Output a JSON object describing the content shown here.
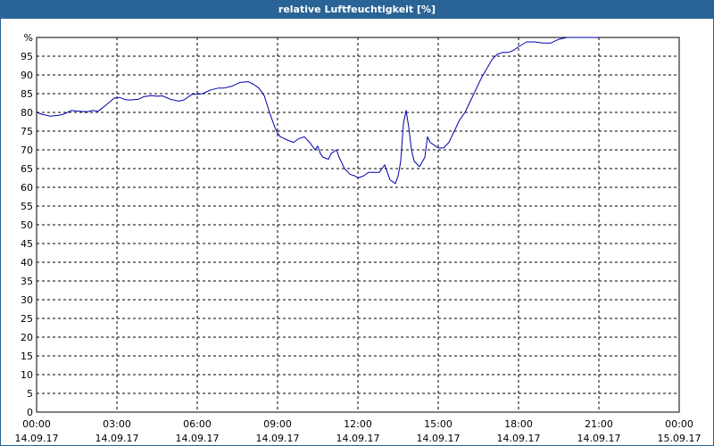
{
  "window": {
    "title": "relative Luftfeuchtigkeit [%]"
  },
  "chart_data": {
    "type": "line",
    "title": "relative Luftfeuchtigkeit [%]",
    "ylabel": "%",
    "xlabel": "",
    "ylim": [
      0,
      100
    ],
    "y_ticks": [
      0,
      5,
      10,
      15,
      20,
      25,
      30,
      35,
      40,
      45,
      50,
      55,
      60,
      65,
      70,
      75,
      80,
      85,
      90,
      95
    ],
    "x_range_hours": [
      0,
      24
    ],
    "x_ticks": [
      {
        "hour": 0,
        "time": "00:00",
        "date": "14.09.17"
      },
      {
        "hour": 3,
        "time": "03:00",
        "date": "14.09.17"
      },
      {
        "hour": 6,
        "time": "06:00",
        "date": "14.09.17"
      },
      {
        "hour": 9,
        "time": "09:00",
        "date": "14.09.17"
      },
      {
        "hour": 12,
        "time": "12:00",
        "date": "14.09.17"
      },
      {
        "hour": 15,
        "time": "15:00",
        "date": "14.09.17"
      },
      {
        "hour": 18,
        "time": "18:00",
        "date": "14.09.17"
      },
      {
        "hour": 21,
        "time": "21:00",
        "date": "14.09.17"
      },
      {
        "hour": 24,
        "time": "00:00",
        "date": "15.09.17"
      }
    ],
    "grid": true,
    "colors": {
      "line": "#0000aa",
      "grid": "#000000",
      "title_bar": "#2a6496"
    },
    "series": [
      {
        "x": [
          0.0,
          0.2,
          0.5,
          0.8,
          1.0,
          1.3,
          1.6,
          1.9,
          2.1,
          2.3,
          2.6,
          2.9,
          3.1,
          3.3,
          3.5,
          3.8,
          4.0,
          4.3,
          4.5,
          4.7,
          5.0,
          5.3,
          5.5,
          5.8,
          6.0,
          6.2,
          6.5,
          6.8,
          7.0,
          7.3,
          7.6,
          7.9,
          8.1,
          8.3,
          8.5,
          8.7,
          8.9,
          9.0,
          9.1,
          9.2,
          9.4,
          9.6,
          9.8,
          10.0,
          10.2,
          10.4,
          10.5,
          10.6,
          10.7,
          10.9,
          11.0,
          11.2,
          11.3,
          11.5,
          11.7,
          11.9,
          12.0,
          12.2,
          12.4,
          12.6,
          12.8,
          12.9,
          13.0,
          13.2,
          13.4,
          13.5,
          13.6,
          13.7,
          13.8,
          13.9,
          14.0,
          14.1,
          14.3,
          14.5,
          14.6,
          14.7,
          14.9,
          15.0,
          15.2,
          15.4,
          15.6,
          15.8,
          16.0,
          16.2,
          16.4,
          16.6,
          16.8,
          17.0,
          17.2,
          17.4,
          17.6,
          17.8,
          18.0,
          18.3,
          18.6,
          18.9,
          19.2,
          19.5,
          19.8,
          20.1,
          20.5,
          20.9,
          21.0
        ],
        "values": [
          80,
          79.5,
          79,
          79.2,
          79.5,
          80.5,
          80.3,
          80.2,
          80.5,
          80.3,
          82,
          83.8,
          84,
          83.4,
          83.3,
          83.5,
          84.2,
          84.5,
          84.3,
          84.4,
          83.5,
          83,
          83.3,
          84.8,
          84.8,
          85,
          86,
          86.5,
          86.5,
          87,
          88,
          88.2,
          87.5,
          86.5,
          84.5,
          80,
          76,
          74.5,
          73.5,
          73.2,
          72.5,
          72,
          73,
          73.5,
          72,
          70,
          71,
          69,
          68,
          67.5,
          69,
          70,
          68,
          65,
          63.5,
          63,
          62.5,
          63,
          64,
          64,
          64,
          65,
          66,
          62,
          61,
          63,
          67,
          77,
          80.5,
          76,
          70,
          67,
          65.5,
          68,
          73.5,
          72,
          71,
          70.5,
          70.5,
          72,
          75,
          78,
          80,
          83,
          86,
          89,
          91.5,
          94,
          95.5,
          96,
          96,
          96.5,
          97.5,
          98.8,
          98.8,
          98.5,
          98.5,
          99.5,
          100,
          100,
          100,
          100,
          100
        ]
      }
    ]
  }
}
